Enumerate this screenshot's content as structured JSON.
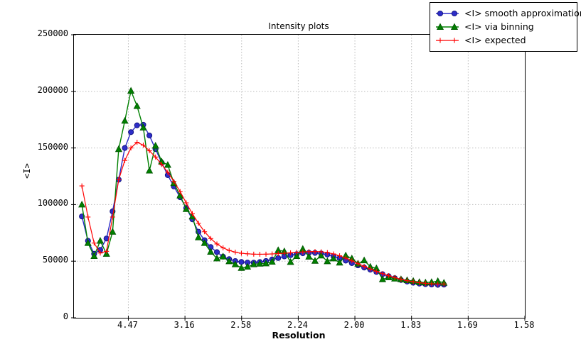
{
  "figure": {
    "title": "Intensity plots",
    "x_axis_label": "Resolution",
    "y_axis_label": "<I>"
  },
  "colors": {
    "blue_line": "#2a2ac8",
    "blue_marker_fill": "#2d2dc8",
    "blue_marker_edge": "#10107a",
    "green_line": "#008000",
    "green_marker_fill": "#008000",
    "green_marker_edge": "#005200",
    "red_line": "#ff0000",
    "grid": "#bcbcbc",
    "axis": "#000000",
    "background": "#ffffff"
  },
  "chart_data": {
    "type": "line",
    "title": "Intensity plots",
    "xlabel": "Resolution",
    "ylabel": "<I>",
    "x_axis_scale": "linear in 1/d^2; tick labels show resolution d",
    "x_tick_positions_inv_d2": [
      0.05,
      0.1,
      0.15,
      0.2,
      0.25,
      0.3,
      0.35,
      0.4
    ],
    "x_tick_labels": [
      "4.47",
      "3.16",
      "2.58",
      "2.24",
      "2.00",
      "1.83",
      "1.69",
      "1.58"
    ],
    "y_tick_values": [
      0,
      50000,
      100000,
      150000,
      200000,
      250000
    ],
    "y_tick_labels": [
      "0",
      "50000",
      "100000",
      "150000",
      "200000",
      "250000"
    ],
    "xlim_inv_d2": [
      0.002,
      0.4
    ],
    "ylim": [
      0,
      250000
    ],
    "grid": true,
    "legend_position": "top-right",
    "x_inv_d2": [
      0.009,
      0.0144,
      0.0198,
      0.0252,
      0.0307,
      0.0361,
      0.0415,
      0.0469,
      0.0523,
      0.0577,
      0.0632,
      0.0686,
      0.074,
      0.0794,
      0.0848,
      0.0902,
      0.0957,
      0.1011,
      0.1065,
      0.1119,
      0.1173,
      0.1227,
      0.1282,
      0.1336,
      0.139,
      0.1444,
      0.1498,
      0.1552,
      0.1607,
      0.1661,
      0.1715,
      0.1769,
      0.1823,
      0.1877,
      0.1932,
      0.1986,
      0.204,
      0.2094,
      0.2148,
      0.2202,
      0.2257,
      0.2311,
      0.2365,
      0.2419,
      0.2473,
      0.2527,
      0.2582,
      0.2636,
      0.269,
      0.2744,
      0.2798,
      0.2852,
      0.2907,
      0.2961,
      0.3015,
      0.3069,
      0.3123,
      0.3177,
      0.3232,
      0.3286
    ],
    "series": [
      {
        "name": "<I> smooth approximation",
        "marker": "circle",
        "color": "#2a2ac8",
        "values": [
          89500,
          68000,
          56500,
          60000,
          70000,
          94000,
          122000,
          150000,
          164000,
          170000,
          170500,
          161000,
          149000,
          137000,
          126000,
          116000,
          106500,
          97000,
          87000,
          76000,
          68500,
          62500,
          58000,
          54000,
          51800,
          50100,
          49300,
          48800,
          48700,
          49200,
          50200,
          51500,
          52800,
          54200,
          55300,
          56200,
          57000,
          57400,
          57300,
          56800,
          55800,
          54300,
          52600,
          50500,
          48300,
          46300,
          44400,
          42500,
          40500,
          38500,
          36700,
          35000,
          33400,
          32000,
          31000,
          30200,
          29700,
          29400,
          29100,
          29300
        ]
      },
      {
        "name": "<I> via binning",
        "marker": "triangle",
        "color": "#008000",
        "values": [
          100000,
          66000,
          54500,
          68000,
          56500,
          76000,
          149000,
          174000,
          200500,
          187000,
          168000,
          130000,
          152000,
          138000,
          135000,
          119000,
          108000,
          96000,
          89500,
          71000,
          66000,
          58300,
          52400,
          54100,
          49900,
          47200,
          44000,
          45100,
          47200,
          47800,
          48000,
          49500,
          59700,
          58700,
          49300,
          54500,
          60800,
          54000,
          50300,
          55000,
          49900,
          52400,
          48700,
          55000,
          52400,
          47800,
          50700,
          45100,
          43700,
          34000,
          35700,
          34600,
          34000,
          33200,
          32500,
          31500,
          31100,
          31500,
          32400,
          30900
        ]
      },
      {
        "name": "<I> expected",
        "marker": "plus",
        "color": "#ff0000",
        "values": [
          116500,
          89000,
          66000,
          57200,
          58700,
          89000,
          122000,
          139000,
          150000,
          155000,
          152500,
          147500,
          142000,
          135500,
          128500,
          120500,
          111500,
          101500,
          92000,
          83500,
          76000,
          70000,
          65200,
          61800,
          59500,
          58000,
          57000,
          56500,
          56200,
          56100,
          56200,
          56400,
          56700,
          57000,
          57400,
          57800,
          58100,
          58400,
          58500,
          58300,
          57600,
          56400,
          54800,
          52700,
          50300,
          47800,
          45400,
          43100,
          41000,
          39000,
          37200,
          35500,
          34000,
          32800,
          31800,
          31000,
          30400,
          30000,
          29800,
          29800
        ]
      }
    ]
  }
}
